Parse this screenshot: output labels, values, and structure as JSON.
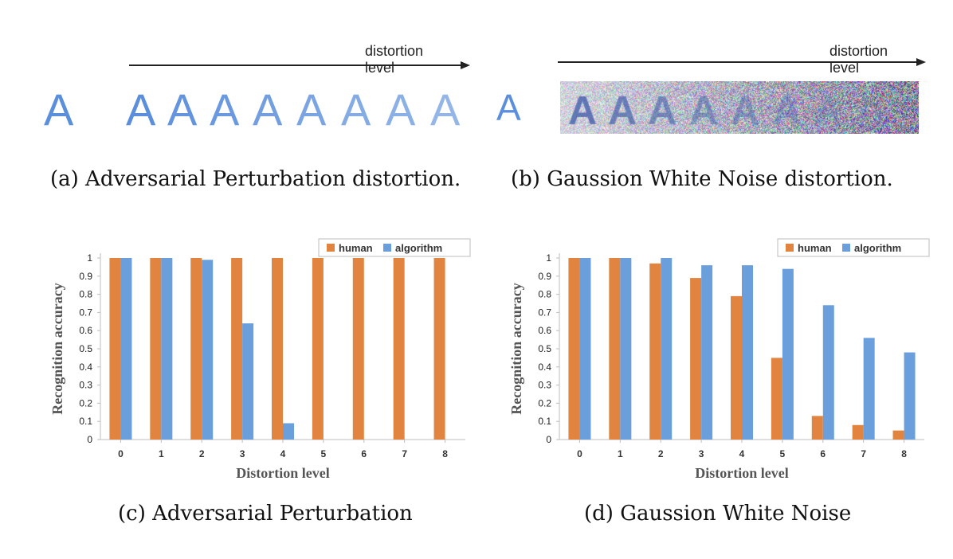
{
  "panel_a": {
    "arrow_label": "distortion level",
    "letter": "A",
    "caption": "(a)  Adversarial Perturbation distortion."
  },
  "panel_b": {
    "arrow_label": "distortion level",
    "letter": "A",
    "caption": "(b)  Gaussion White Noise distortion."
  },
  "chart_data": [
    {
      "type": "bar",
      "caption": "(c)  Adversarial Perturbation",
      "categories": [
        "0",
        "1",
        "2",
        "3",
        "4",
        "5",
        "6",
        "7",
        "8"
      ],
      "series": [
        {
          "name": "human",
          "values": [
            1,
            1,
            1,
            1,
            1,
            1,
            1,
            1,
            1
          ],
          "color": "#e0843f"
        },
        {
          "name": "algorithm",
          "values": [
            1,
            1,
            0.99,
            0.64,
            0.09,
            0,
            0,
            0,
            0
          ],
          "color": "#6a9fdc"
        }
      ],
      "xlabel": "Distortion level",
      "ylabel": "Recognition accuracy",
      "ylim": [
        0,
        1
      ],
      "yticks": [
        "0",
        "0.1",
        "0.2",
        "0.3",
        "0.4",
        "0.5",
        "0.6",
        "0.7",
        "0.8",
        "0.9",
        "1"
      ],
      "legend": "top-right",
      "grid": false
    },
    {
      "type": "bar",
      "caption": "(d)  Gaussion White Noise",
      "categories": [
        "0",
        "1",
        "2",
        "3",
        "4",
        "5",
        "6",
        "7",
        "8"
      ],
      "series": [
        {
          "name": "human",
          "values": [
            1,
            1,
            0.97,
            0.89,
            0.79,
            0.45,
            0.13,
            0.08,
            0.05
          ],
          "color": "#e0843f"
        },
        {
          "name": "algorithm",
          "values": [
            1,
            1,
            1,
            0.96,
            0.96,
            0.94,
            0.74,
            0.56,
            0.48
          ],
          "color": "#6a9fdc"
        }
      ],
      "xlabel": "Distortion level",
      "ylabel": "Recognition accuracy",
      "ylim": [
        0,
        1
      ],
      "yticks": [
        "0",
        "0.1",
        "0.2",
        "0.3",
        "0.4",
        "0.5",
        "0.6",
        "0.7",
        "0.8",
        "0.9",
        "1"
      ],
      "legend": "top-right",
      "grid": false
    }
  ]
}
